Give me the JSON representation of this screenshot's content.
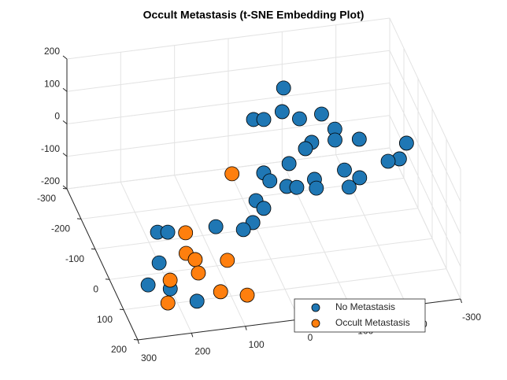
{
  "chart_data": {
    "type": "scatter3",
    "title": "Occult Metastasis (t-SNE Embedding Plot)",
    "xlim": [
      -300,
      300
    ],
    "xticks": [
      -300,
      -200,
      -100,
      0,
      100,
      200,
      300
    ],
    "ylim": [
      -300,
      200
    ],
    "yticks": [
      -300,
      -200,
      -100,
      0,
      100,
      200
    ],
    "zlim": [
      -200,
      200
    ],
    "zticks": [
      -200,
      -100,
      0,
      100,
      200
    ],
    "grid": true,
    "legend": "southeast",
    "series": [
      {
        "name": "No Metastasis",
        "color": "#1f77b4",
        "x": [
          -83,
          -69,
          -15,
          -33,
          -96,
          -137,
          -153,
          -106,
          -92,
          -148,
          -191,
          -272,
          -252,
          -231,
          -56,
          -7,
          -14,
          -41,
          -58,
          -93,
          -92,
          -150,
          -173,
          -150,
          20,
          10,
          36,
          56,
          103,
          208,
          190,
          220,
          250,
          213,
          172
        ],
        "y": [
          -225,
          -182,
          -179,
          -175,
          -162,
          -162,
          -129,
          -114,
          -105,
          -109,
          -101,
          -75,
          -49,
          -49,
          -84,
          -77,
          -60,
          -43,
          -37,
          -45,
          -28,
          -50,
          -30,
          -17,
          -29,
          -12,
          10,
          19,
          3,
          -10,
          -6,
          47,
          83,
          99,
          132
        ],
        "z": [
          100,
          70,
          60,
          60,
          61,
          67,
          48,
          31,
          23,
          34,
          35,
          30,
          10,
          7,
          4,
          -8,
          -18,
          -25,
          -26,
          -16,
          -27,
          -4,
          -14,
          -26,
          -43,
          -53,
          -71,
          -80,
          -76,
          -83,
          -83,
          -122,
          -150,
          -155,
          -171
        ]
      },
      {
        "name": "Occult Metastasis",
        "color": "#ff7f0e",
        "x": [
          49,
          159,
          168,
          155,
          99,
          156,
          209,
          126,
          81,
          224
        ],
        "y": [
          -88,
          2,
          40,
          55,
          69,
          81,
          83,
          124,
          141,
          124
        ],
        "z": [
          -9,
          -84,
          -110,
          -118,
          -119,
          -135,
          -144,
          -159,
          -163,
          -173
        ]
      }
    ]
  }
}
